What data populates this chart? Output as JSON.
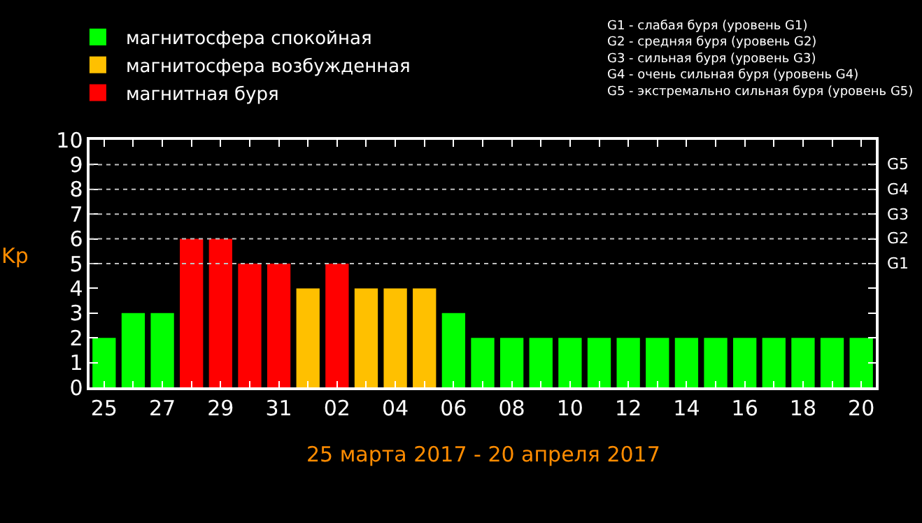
{
  "chart_data": {
    "type": "bar",
    "xlabel": "25 марта 2017 - 20 апреля 2017",
    "ylabel": "Kp",
    "categories": [
      "25",
      null,
      "27",
      null,
      "29",
      null,
      "31",
      null,
      "02",
      null,
      "04",
      null,
      "06",
      null,
      "08",
      null,
      "10",
      null,
      "12",
      null,
      "14",
      null,
      "16",
      null,
      "18",
      null,
      "20"
    ],
    "series": [
      {
        "name": "магнитосфера спокойная",
        "color": "#00ff00",
        "values": [
          2,
          3,
          3,
          null,
          null,
          null,
          null,
          null,
          null,
          null,
          null,
          null,
          3,
          2,
          2,
          2,
          2,
          2,
          2,
          2,
          2,
          2,
          2,
          2,
          2,
          2,
          2
        ]
      },
      {
        "name": "магнитосфера возбужденная",
        "color": "#ffc000",
        "values": [
          null,
          null,
          null,
          null,
          null,
          null,
          null,
          4,
          null,
          4,
          4,
          4,
          null,
          null,
          null,
          null,
          null,
          null,
          null,
          null,
          null,
          null,
          null,
          null,
          null,
          null,
          null
        ]
      },
      {
        "name": "магнитная буря",
        "color": "#ff0000",
        "values": [
          null,
          null,
          null,
          6,
          6,
          5,
          5,
          null,
          5,
          null,
          null,
          null,
          null,
          null,
          null,
          null,
          null,
          null,
          null,
          null,
          null,
          null,
          null,
          null,
          null,
          null,
          null
        ]
      }
    ],
    "ylim": [
      0,
      10
    ],
    "yticks": [
      0,
      1,
      2,
      3,
      4,
      5,
      6,
      7,
      8,
      9,
      10
    ],
    "ref_lines": [
      {
        "axis": "y",
        "value": 5,
        "label": "G1",
        "line_style": "dotted",
        "color": "#c0c0c0"
      },
      {
        "axis": "y",
        "value": 6,
        "label": "G2",
        "line_style": "dotted",
        "color": "#c0c0c0"
      },
      {
        "axis": "y",
        "value": 7,
        "label": "G3",
        "line_style": "dotted",
        "color": "#c0c0c0"
      },
      {
        "axis": "y",
        "value": 8,
        "label": "G4",
        "line_style": "dotted",
        "color": "#c0c0c0"
      },
      {
        "axis": "y",
        "value": 9,
        "label": "G5",
        "line_style": "dotted",
        "color": "#c0c0c0"
      }
    ],
    "annotations": [
      "G1 - слабая буря (уровень G1)\nG2 - средняя буря (уровень G2)\nG3 - сильная буря (уровень G3)\nG4 - очень сильная буря (уровень G4)\nG5 - экстремально сильная буря (уровень G5)"
    ],
    "legend": "top left",
    "grid": false
  }
}
